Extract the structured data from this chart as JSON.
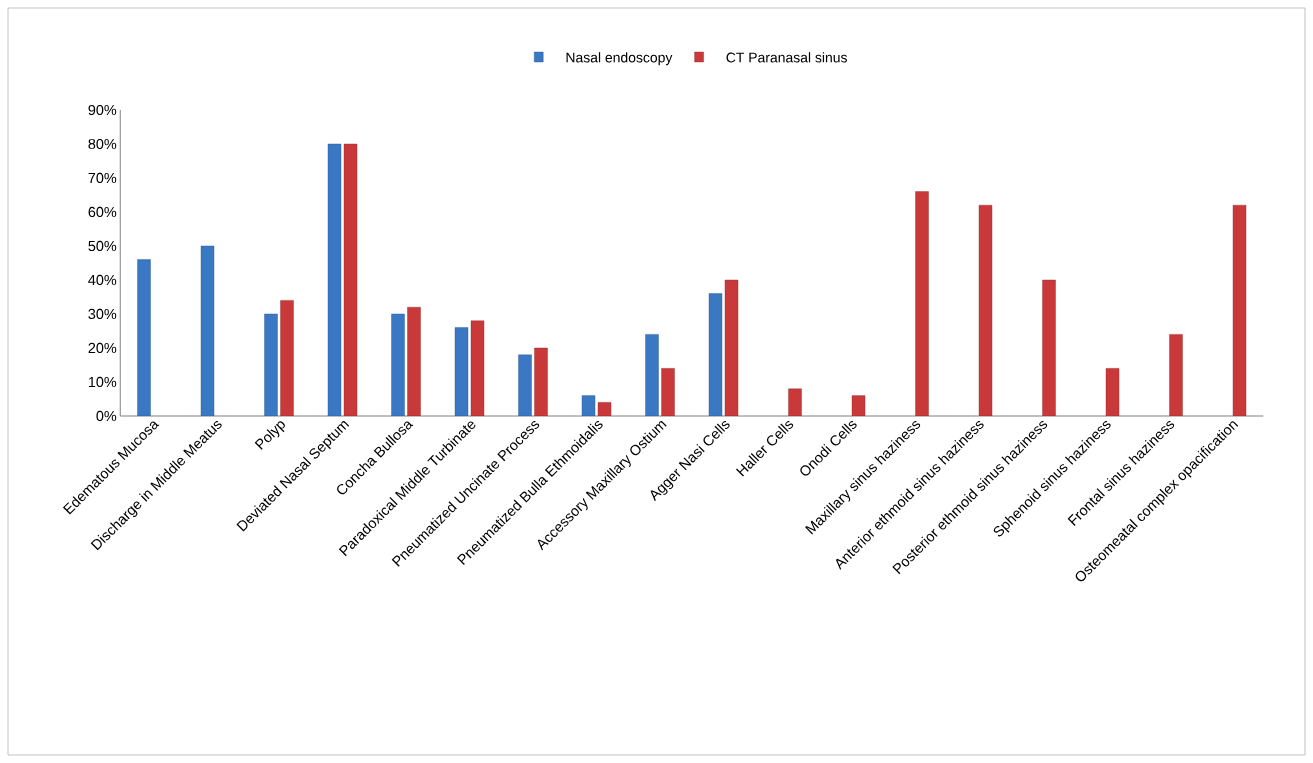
{
  "chart_data": {
    "type": "bar",
    "categories": [
      "Edematous Mucosa",
      "Discharge in Middle Meatus",
      "Polyp",
      "Deviated Nasal Septum",
      "Concha Bullosa",
      "Paradoxical Middle Turbinate",
      "Pneumatized Uncinate Process",
      "Pneumatized Bulla Ethmoidalis",
      "Accessory Maxillary Ostium",
      "Agger Nasi Cells",
      "Haller Cells",
      "Onodi Cells",
      "Maxillary sinus haziness",
      "Anterior ethmoid sinus haziness",
      "Posterior ethmoid sinus haziness",
      "Sphenoid sinus haziness",
      "Frontal sinus haziness",
      "Osteomeatal complex opacification"
    ],
    "series": [
      {
        "name": "Nasal endoscopy",
        "color": "#3a78c3",
        "values": [
          46,
          50,
          30,
          80,
          30,
          26,
          18,
          6,
          24,
          36,
          null,
          null,
          null,
          null,
          null,
          null,
          null,
          null
        ]
      },
      {
        "name": "CT Paranasal sinus",
        "color": "#c9393a",
        "values": [
          null,
          null,
          34,
          80,
          32,
          28,
          20,
          4,
          14,
          40,
          8,
          6,
          66,
          62,
          40,
          14,
          24,
          62
        ]
      }
    ],
    "ylim": [
      0,
      90
    ],
    "yticks": [
      {
        "value": 0,
        "label": "0%"
      },
      {
        "value": 10,
        "label": "10%"
      },
      {
        "value": 20,
        "label": "20%"
      },
      {
        "value": 30,
        "label": "30%"
      },
      {
        "value": 40,
        "label": "40%"
      },
      {
        "value": 50,
        "label": "50%"
      },
      {
        "value": 60,
        "label": "60%"
      },
      {
        "value": 70,
        "label": "70%"
      },
      {
        "value": 80,
        "label": "80%"
      },
      {
        "value": 90,
        "label": "90%"
      }
    ],
    "legend": "top",
    "grid": false
  }
}
